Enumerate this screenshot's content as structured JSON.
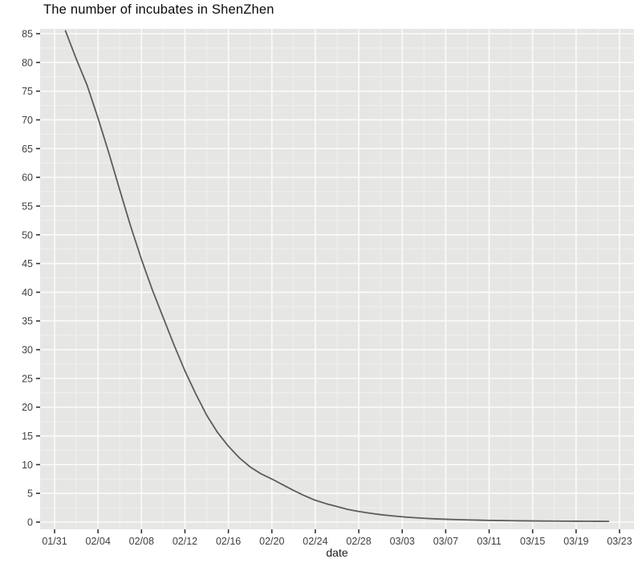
{
  "chart_data": {
    "type": "line",
    "title": "The number of incubates in ShenZhen",
    "xlabel": "date",
    "ylabel": "",
    "ylim": [
      0,
      85
    ],
    "y_ticks": [
      0,
      5,
      10,
      15,
      20,
      25,
      30,
      35,
      40,
      45,
      50,
      55,
      60,
      65,
      70,
      75,
      80,
      85
    ],
    "x_ticks": [
      "01/31",
      "02/04",
      "02/08",
      "02/12",
      "02/16",
      "02/20",
      "02/24",
      "02/28",
      "03/03",
      "03/07",
      "03/11",
      "03/15",
      "03/19",
      "03/23"
    ],
    "grid": "major and minor gridlines, white on gray panel",
    "legend": "none",
    "style": {
      "panel_bg": "#e6e6e4",
      "grid_major": "#fbfbf9",
      "grid_minor": "#f0f0ee",
      "line_color": "#566156",
      "tick_color": "#333333",
      "axis_text_color": "#404040"
    },
    "series": [
      {
        "name": "incubates",
        "x": [
          "02/01",
          "02/02",
          "02/03",
          "02/04",
          "02/05",
          "02/06",
          "02/07",
          "02/08",
          "02/09",
          "02/10",
          "02/11",
          "02/12",
          "02/13",
          "02/14",
          "02/15",
          "02/16",
          "02/17",
          "02/18",
          "02/19",
          "02/20",
          "02/21",
          "02/22",
          "02/23",
          "02/24",
          "02/25",
          "02/26",
          "02/27",
          "02/28",
          "02/29",
          "03/01",
          "03/02",
          "03/03",
          "03/04",
          "03/05",
          "03/06",
          "03/07",
          "03/08",
          "03/09",
          "03/10",
          "03/11",
          "03/12",
          "03/13",
          "03/14",
          "03/15",
          "03/16",
          "03/17",
          "03/18",
          "03/19",
          "03/20",
          "03/21",
          "03/22"
        ],
        "values": [
          85.5,
          80.6,
          76.0,
          70.3,
          64.2,
          57.8,
          51.5,
          45.7,
          40.4,
          35.6,
          30.8,
          26.3,
          22.3,
          18.6,
          15.6,
          13.2,
          11.2,
          9.6,
          8.4,
          7.5,
          6.5,
          5.5,
          4.6,
          3.8,
          3.2,
          2.7,
          2.2,
          1.85,
          1.55,
          1.3,
          1.1,
          0.92,
          0.78,
          0.66,
          0.57,
          0.5,
          0.44,
          0.38,
          0.34,
          0.3,
          0.27,
          0.24,
          0.22,
          0.2,
          0.18,
          0.17,
          0.16,
          0.15,
          0.14,
          0.13,
          0.12
        ]
      }
    ]
  }
}
